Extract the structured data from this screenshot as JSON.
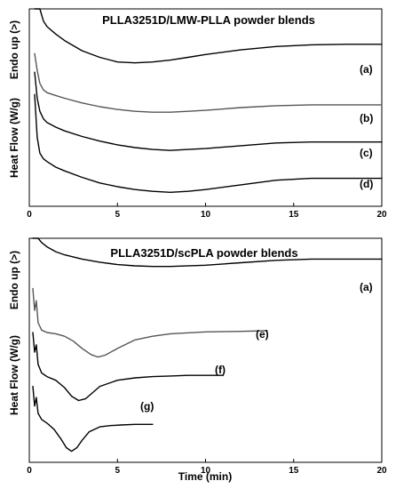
{
  "chart_data": [
    {
      "type": "line",
      "title": "PLLA3251D/LMW-PLLA powder blends",
      "xlabel": "",
      "ylabel_top": "Endo up (>)",
      "ylabel_bottom": "Heat Flow (W/g)",
      "xlim": [
        0,
        20
      ],
      "x_ticks": [
        0,
        5,
        10,
        15,
        20
      ],
      "yticks_shown": false,
      "series": [
        {
          "name": "(a)",
          "color": "#000000",
          "x": [
            0.3,
            0.45,
            0.6,
            0.8,
            1,
            1.5,
            2,
            3,
            4,
            5,
            6,
            7,
            8,
            9,
            10,
            12,
            14,
            16,
            18,
            20
          ],
          "y": [
            10.0,
            3.0,
            1.6,
            0.95,
            0.65,
            0.25,
            -0.1,
            -0.65,
            -1.0,
            -1.25,
            -1.3,
            -1.25,
            -1.15,
            -1.0,
            -0.85,
            -0.6,
            -0.42,
            -0.33,
            -0.3,
            -0.3
          ]
        },
        {
          "name": "(b)",
          "color": "#555555",
          "x": [
            0.3,
            0.45,
            0.6,
            0.8,
            1,
            1.5,
            2,
            3,
            4,
            5,
            6,
            7,
            8,
            9,
            10,
            12,
            14,
            16,
            18,
            20
          ],
          "y": [
            -0.8,
            -1.7,
            -2.4,
            -2.75,
            -2.9,
            -3.05,
            -3.2,
            -3.45,
            -3.65,
            -3.8,
            -3.9,
            -3.95,
            -3.95,
            -3.9,
            -3.85,
            -3.7,
            -3.6,
            -3.55,
            -3.55,
            -3.55
          ]
        },
        {
          "name": "(c)",
          "color": "#000000",
          "x": [
            0.3,
            0.45,
            0.6,
            0.8,
            1,
            1.5,
            2,
            3,
            4,
            5,
            6,
            7,
            8,
            9,
            10,
            12,
            14,
            16,
            18,
            20
          ],
          "y": [
            -1.8,
            -3.2,
            -3.9,
            -4.3,
            -4.5,
            -4.75,
            -4.95,
            -5.25,
            -5.5,
            -5.7,
            -5.85,
            -5.95,
            -6.0,
            -5.95,
            -5.9,
            -5.75,
            -5.6,
            -5.55,
            -5.55,
            -5.55
          ]
        },
        {
          "name": "(d)",
          "color": "#000000",
          "x": [
            0.3,
            0.45,
            0.6,
            0.8,
            1,
            1.5,
            2,
            3,
            4,
            5,
            6,
            7,
            8,
            9,
            10,
            12,
            14,
            16,
            18,
            20
          ],
          "y": [
            -3.0,
            -5.3,
            -6.15,
            -6.45,
            -6.6,
            -6.9,
            -7.1,
            -7.45,
            -7.75,
            -7.95,
            -8.1,
            -8.2,
            -8.25,
            -8.2,
            -8.1,
            -7.85,
            -7.6,
            -7.5,
            -7.5,
            -7.5
          ]
        }
      ],
      "annotations": [
        "(a)",
        "(b)",
        "(c)",
        "(d)"
      ]
    },
    {
      "type": "line",
      "title": "PLLA3251D/scPLA powder blends",
      "xlabel": "Time (min)",
      "ylabel_top": "Endo up (>)",
      "ylabel_bottom": "Heat Flow (W/g)",
      "xlim": [
        0,
        20
      ],
      "x_ticks": [
        0,
        5,
        10,
        15,
        20
      ],
      "yticks_shown": false,
      "series": [
        {
          "name": "(a)",
          "color": "#000000",
          "x": [
            0.2,
            0.3,
            0.4,
            0.5,
            0.7,
            1,
            1.5,
            2,
            3,
            4,
            5,
            6,
            7,
            8,
            10,
            12,
            14,
            16,
            18,
            20
          ],
          "y": [
            5.2,
            3.4,
            4.2,
            2.2,
            1.35,
            1.0,
            0.6,
            0.35,
            0.0,
            -0.25,
            -0.45,
            -0.55,
            -0.6,
            -0.6,
            -0.5,
            -0.3,
            -0.1,
            0.0,
            0.0,
            0.0
          ]
        },
        {
          "name": "(e)",
          "color": "#555555",
          "x": [
            0.2,
            0.3,
            0.4,
            0.5,
            0.7,
            1,
            1.5,
            2,
            2.5,
            3,
            3.5,
            3.9,
            4.3,
            5,
            6,
            7,
            8,
            10,
            12,
            13.5
          ],
          "y": [
            -2.4,
            -4.2,
            -3.4,
            -5.2,
            -5.8,
            -6.0,
            -6.1,
            -6.3,
            -6.7,
            -7.3,
            -7.8,
            -8.0,
            -7.85,
            -7.3,
            -6.6,
            -6.3,
            -6.1,
            -5.95,
            -5.9,
            -5.85
          ]
        },
        {
          "name": "(f)",
          "color": "#000000",
          "x": [
            0.2,
            0.3,
            0.4,
            0.5,
            0.7,
            1,
            1.5,
            2,
            2.4,
            2.8,
            3.2,
            3.6,
            4,
            5,
            6,
            7,
            8,
            9,
            10,
            11
          ],
          "y": [
            -6.0,
            -7.6,
            -7.0,
            -8.6,
            -9.3,
            -9.6,
            -9.9,
            -10.5,
            -11.2,
            -11.55,
            -11.4,
            -10.9,
            -10.4,
            -9.9,
            -9.7,
            -9.6,
            -9.55,
            -9.5,
            -9.5,
            -9.5
          ]
        },
        {
          "name": "(g)",
          "color": "#000000",
          "x": [
            0.2,
            0.3,
            0.4,
            0.5,
            0.7,
            1,
            1.4,
            1.8,
            2.1,
            2.4,
            2.7,
            3.0,
            3.4,
            4,
            4.6,
            5.2,
            6,
            7
          ],
          "y": [
            -10.4,
            -12.0,
            -11.3,
            -12.6,
            -13.1,
            -13.4,
            -13.9,
            -14.7,
            -15.4,
            -15.7,
            -15.4,
            -14.8,
            -14.1,
            -13.7,
            -13.6,
            -13.55,
            -13.5,
            -13.5
          ]
        }
      ],
      "annotations": [
        "(a)",
        "(e)",
        "(f)",
        "(g)"
      ]
    }
  ]
}
